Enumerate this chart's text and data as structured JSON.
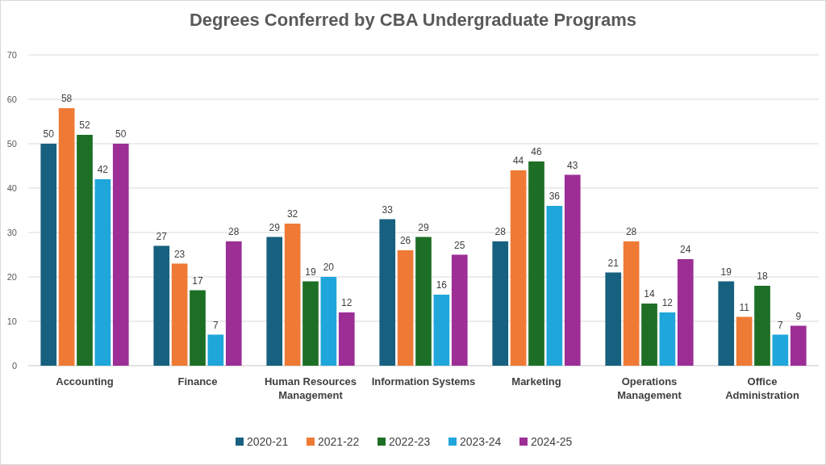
{
  "chart_data": {
    "type": "bar",
    "title": "Degrees Conferred by CBA  Undergraduate Programs",
    "categories": [
      "Accounting",
      "Finance",
      "Human Resources Management",
      "Information Systems",
      "Marketing",
      "Operations Management",
      "Office Administration"
    ],
    "series": [
      {
        "name": "2020-21",
        "color": "#17607f",
        "values": [
          50,
          27,
          29,
          33,
          28,
          21,
          19
        ]
      },
      {
        "name": "2021-22",
        "color": "#ef7a36",
        "values": [
          58,
          23,
          32,
          26,
          44,
          28,
          11
        ]
      },
      {
        "name": "2022-23",
        "color": "#1e6f26",
        "values": [
          52,
          17,
          19,
          29,
          46,
          14,
          18
        ]
      },
      {
        "name": "2023-24",
        "color": "#1fa6da",
        "values": [
          42,
          7,
          20,
          16,
          36,
          12,
          7
        ]
      },
      {
        "name": "2024-25",
        "color": "#9c2e96",
        "values": [
          50,
          28,
          12,
          25,
          43,
          24,
          9
        ]
      }
    ],
    "ylim": [
      0,
      70
    ],
    "yticks": [
      0,
      10,
      20,
      30,
      40,
      50,
      60,
      70
    ],
    "grid": "y",
    "legend": "bottom",
    "data_labels": true
  }
}
